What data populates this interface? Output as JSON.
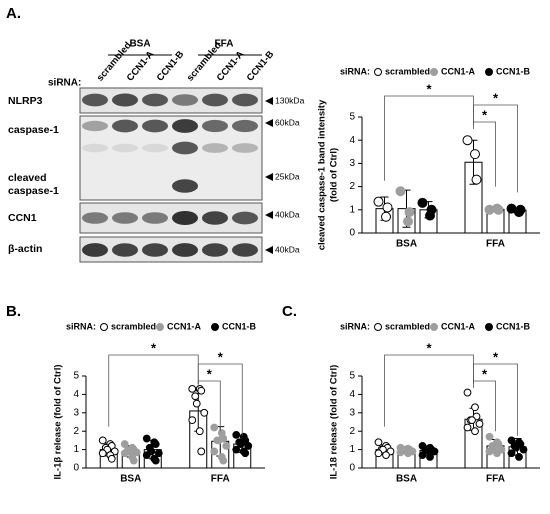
{
  "blot": {
    "panel": "A.",
    "groups": [
      "BSA",
      "FFA"
    ],
    "sirna_label": "siRNA:",
    "lanes": [
      "scrambled",
      "CCN1-A",
      "CCN1-B",
      "scrambled",
      "CCN1-A",
      "CCN1-B"
    ],
    "rows": [
      "NLRP3",
      "caspase-1",
      "cleaved",
      "caspase-1",
      "CCN1",
      "β-actin"
    ],
    "markers": [
      "130kDa",
      "60kDa",
      "25kDa",
      "40kDa",
      "40kDa"
    ]
  },
  "chart_data": [
    {
      "type": "bar",
      "ylabel": [
        "cleaved caspase-1 band intensity",
        "(fold of Ctrl)"
      ],
      "legend_title": "siRNA:",
      "categories": [
        "BSA",
        "FFA"
      ],
      "ylim": [
        0,
        5
      ],
      "yticks": [
        0,
        1,
        2,
        3,
        4,
        5
      ],
      "annotations": [
        "*",
        "*",
        "*"
      ],
      "series": [
        {
          "name": "scrambled",
          "color": "#ffffff",
          "values": [
            1.05,
            3.05
          ],
          "errors": [
            0.5,
            0.95
          ],
          "points": [
            [
              1.35,
              0.7,
              1.1
            ],
            [
              4.0,
              3.4,
              2.3
            ]
          ]
        },
        {
          "name": "CCN1-A",
          "color": "#9e9e9e",
          "values": [
            1.05,
            1.02
          ],
          "errors": [
            0.8,
            0.05
          ],
          "points": [
            [
              1.8,
              0.5,
              0.9
            ],
            [
              1.0,
              1.05,
              1.0
            ]
          ]
        },
        {
          "name": "CCN1-B",
          "color": "#000000",
          "values": [
            1.0,
            0.98
          ],
          "errors": [
            0.35,
            0.1
          ],
          "points": [
            [
              1.3,
              0.75,
              1.0
            ],
            [
              1.05,
              0.9,
              1.0
            ]
          ]
        }
      ]
    },
    {
      "type": "bar",
      "panel": "B.",
      "ylabel": [
        "IL-1β release (fold of Ctrl)"
      ],
      "legend_title": "siRNA:",
      "categories": [
        "BSA",
        "FFA"
      ],
      "ylim": [
        0,
        5
      ],
      "yticks": [
        0,
        1,
        2,
        3,
        4,
        5
      ],
      "annotations": [
        "*",
        "*",
        "*"
      ],
      "series": [
        {
          "name": "scrambled",
          "color": "#ffffff",
          "values": [
            1.0,
            3.1
          ],
          "errors": [
            0.35,
            1.1
          ],
          "points": [
            [
              1.5,
              1.3,
              1.2,
              1.1,
              1.0,
              0.9,
              0.8,
              0.7,
              0.5
            ],
            [
              4.3,
              4.3,
              4.2,
              3.9,
              3.5,
              3.0,
              2.6,
              2.0,
              0.9
            ]
          ]
        },
        {
          "name": "CCN1-A",
          "color": "#9e9e9e",
          "values": [
            0.9,
            1.45
          ],
          "errors": [
            0.3,
            0.8
          ],
          "points": [
            [
              1.3,
              1.1,
              1.0,
              0.95,
              0.9,
              0.85,
              0.8,
              0.6,
              0.4
            ],
            [
              2.2,
              1.9,
              1.6,
              1.5,
              1.5,
              1.2,
              0.9,
              0.6,
              0.4
            ]
          ]
        },
        {
          "name": "CCN1-B",
          "color": "#000000",
          "values": [
            1.0,
            1.3
          ],
          "errors": [
            0.5,
            0.45
          ],
          "points": [
            [
              1.6,
              1.4,
              1.3,
              1.1,
              0.9,
              0.8,
              0.7,
              0.5,
              0.4
            ],
            [
              1.8,
              1.7,
              1.5,
              1.4,
              1.3,
              1.2,
              1.0,
              0.9,
              0.8
            ]
          ]
        }
      ]
    },
    {
      "type": "bar",
      "panel": "C.",
      "ylabel": [
        "IL-18 release (fold of Ctrl)"
      ],
      "legend_title": "siRNA:",
      "categories": [
        "BSA",
        "FFA"
      ],
      "ylim": [
        0,
        5
      ],
      "yticks": [
        0,
        1,
        2,
        3,
        4,
        5
      ],
      "annotations": [
        "*",
        "*",
        "*"
      ],
      "series": [
        {
          "name": "scrambled",
          "color": "#ffffff",
          "values": [
            1.0,
            2.65
          ],
          "errors": [
            0.25,
            0.6
          ],
          "points": [
            [
              1.4,
              1.2,
              1.1,
              1.0,
              1.0,
              0.9,
              0.8,
              0.7
            ],
            [
              4.1,
              3.3,
              2.8,
              2.6,
              2.6,
              2.4,
              2.2,
              2.0
            ]
          ]
        },
        {
          "name": "CCN1-A",
          "color": "#9e9e9e",
          "values": [
            0.95,
            1.2
          ],
          "errors": [
            0.15,
            0.35
          ],
          "points": [
            [
              1.1,
              1.05,
              1.0,
              1.0,
              0.95,
              0.9,
              0.85,
              0.8
            ],
            [
              1.7,
              1.4,
              1.3,
              1.2,
              1.1,
              1.0,
              0.9,
              0.8
            ]
          ]
        },
        {
          "name": "CCN1-B",
          "color": "#000000",
          "values": [
            0.95,
            1.15
          ],
          "errors": [
            0.25,
            0.45
          ],
          "points": [
            [
              1.2,
              1.1,
              1.0,
              1.0,
              0.95,
              0.9,
              0.7,
              0.6
            ],
            [
              1.5,
              1.4,
              1.3,
              1.2,
              1.1,
              1.0,
              0.8,
              0.6
            ]
          ]
        }
      ]
    }
  ]
}
